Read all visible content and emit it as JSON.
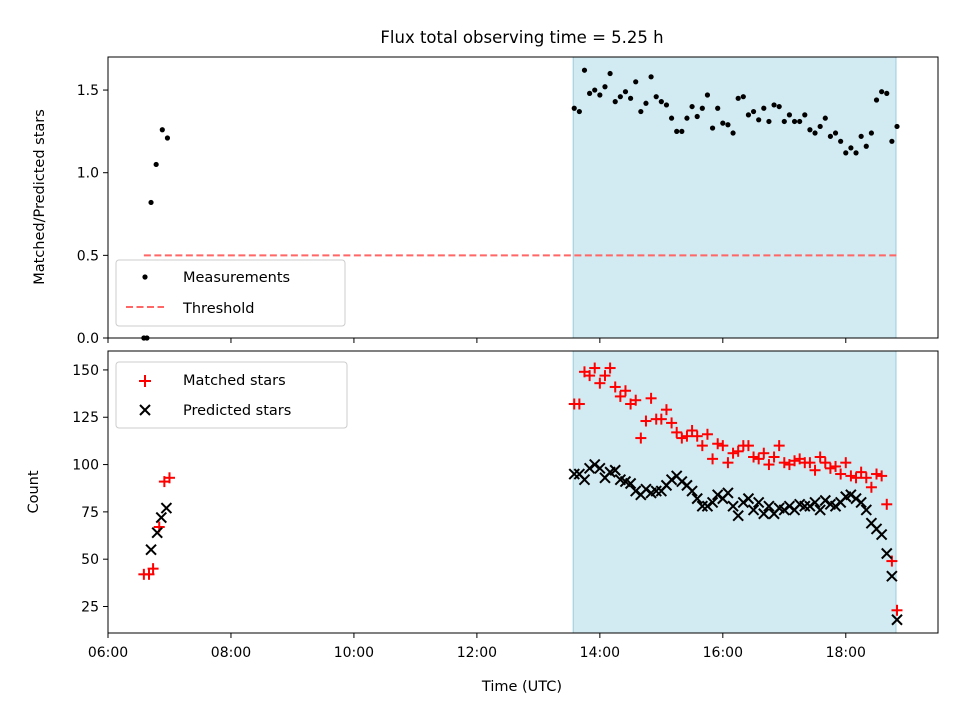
{
  "chart_data": [
    {
      "type": "scatter",
      "title": "Flux total observing time = 5.25 h",
      "xlabel": "",
      "ylabel": "Matched/Predicted stars",
      "xlim": [
        "06:00",
        "19:30"
      ],
      "ylim": [
        0,
        1.7
      ],
      "yticks": [
        "0.0",
        "0.5",
        "1.0",
        "1.5"
      ],
      "shaded_interval": [
        "13:34",
        "18:49"
      ],
      "shade_color": "#add8e6",
      "legend_position": "lower-left",
      "series": [
        {
          "name": "Measurements",
          "marker": "dot",
          "color": "#000000",
          "points": [
            [
              "06:35",
              0.0
            ],
            [
              "06:38",
              0.0
            ],
            [
              "06:42",
              0.82
            ],
            [
              "06:47",
              1.05
            ],
            [
              "06:53",
              1.26
            ],
            [
              "06:58",
              1.21
            ],
            [
              "13:35",
              1.39
            ],
            [
              "13:40",
              1.37
            ],
            [
              "13:45",
              1.62
            ],
            [
              "13:50",
              1.48
            ],
            [
              "13:55",
              1.5
            ],
            [
              "14:00",
              1.47
            ],
            [
              "14:05",
              1.52
            ],
            [
              "14:10",
              1.6
            ],
            [
              "14:15",
              1.43
            ],
            [
              "14:20",
              1.46
            ],
            [
              "14:25",
              1.49
            ],
            [
              "14:30",
              1.45
            ],
            [
              "14:35",
              1.55
            ],
            [
              "14:40",
              1.37
            ],
            [
              "14:45",
              1.42
            ],
            [
              "14:50",
              1.58
            ],
            [
              "14:55",
              1.46
            ],
            [
              "15:00",
              1.43
            ],
            [
              "15:05",
              1.41
            ],
            [
              "15:10",
              1.33
            ],
            [
              "15:15",
              1.25
            ],
            [
              "15:20",
              1.25
            ],
            [
              "15:25",
              1.33
            ],
            [
              "15:30",
              1.4
            ],
            [
              "15:35",
              1.34
            ],
            [
              "15:40",
              1.39
            ],
            [
              "15:45",
              1.47
            ],
            [
              "15:50",
              1.27
            ],
            [
              "15:55",
              1.39
            ],
            [
              "16:00",
              1.3
            ],
            [
              "16:05",
              1.29
            ],
            [
              "16:10",
              1.24
            ],
            [
              "16:15",
              1.45
            ],
            [
              "16:20",
              1.46
            ],
            [
              "16:25",
              1.35
            ],
            [
              "16:30",
              1.37
            ],
            [
              "16:35",
              1.32
            ],
            [
              "16:40",
              1.39
            ],
            [
              "16:45",
              1.31
            ],
            [
              "16:50",
              1.41
            ],
            [
              "16:55",
              1.4
            ],
            [
              "17:00",
              1.31
            ],
            [
              "17:05",
              1.35
            ],
            [
              "17:10",
              1.31
            ],
            [
              "17:15",
              1.31
            ],
            [
              "17:20",
              1.35
            ],
            [
              "17:25",
              1.26
            ],
            [
              "17:30",
              1.24
            ],
            [
              "17:35",
              1.28
            ],
            [
              "17:40",
              1.33
            ],
            [
              "17:45",
              1.22
            ],
            [
              "17:50",
              1.24
            ],
            [
              "17:55",
              1.19
            ],
            [
              "18:00",
              1.12
            ],
            [
              "18:05",
              1.15
            ],
            [
              "18:10",
              1.12
            ],
            [
              "18:15",
              1.22
            ],
            [
              "18:20",
              1.16
            ],
            [
              "18:25",
              1.24
            ],
            [
              "18:30",
              1.44
            ],
            [
              "18:35",
              1.49
            ],
            [
              "18:40",
              1.48
            ],
            [
              "18:45",
              1.19
            ],
            [
              "18:50",
              1.28
            ]
          ]
        },
        {
          "name": "Threshold",
          "line_style": "dashed",
          "color": "#ff6666",
          "points": [
            [
              "06:35",
              0.5
            ],
            [
              "18:50",
              0.5
            ]
          ]
        }
      ]
    },
    {
      "type": "scatter",
      "title": "",
      "xlabel": "Time (UTC)",
      "ylabel": "Count",
      "xlim": [
        "06:00",
        "19:30"
      ],
      "ylim": [
        11,
        160
      ],
      "xticks": [
        "06:00",
        "08:00",
        "10:00",
        "12:00",
        "14:00",
        "16:00",
        "18:00"
      ],
      "yticks": [
        "25",
        "50",
        "75",
        "100",
        "125",
        "150"
      ],
      "shaded_interval": [
        "13:34",
        "18:49"
      ],
      "shade_color": "#add8e6",
      "legend_position": "top-left",
      "series": [
        {
          "name": "Matched stars",
          "marker": "plus",
          "color": "#ff0000",
          "points": [
            [
              "06:35",
              42
            ],
            [
              "06:40",
              42
            ],
            [
              "06:44",
              45
            ],
            [
              "06:50",
              67
            ],
            [
              "06:55",
              91
            ],
            [
              "07:00",
              93
            ],
            [
              "13:35",
              132
            ],
            [
              "13:40",
              132
            ],
            [
              "13:45",
              149
            ],
            [
              "13:50",
              147
            ],
            [
              "13:55",
              151
            ],
            [
              "14:00",
              143
            ],
            [
              "14:05",
              147
            ],
            [
              "14:10",
              151
            ],
            [
              "14:15",
              141
            ],
            [
              "14:20",
              136
            ],
            [
              "14:25",
              139
            ],
            [
              "14:30",
              132
            ],
            [
              "14:35",
              134
            ],
            [
              "14:40",
              114
            ],
            [
              "14:45",
              123
            ],
            [
              "14:50",
              135
            ],
            [
              "14:55",
              124
            ],
            [
              "15:00",
              124
            ],
            [
              "15:05",
              129
            ],
            [
              "15:10",
              122
            ],
            [
              "15:15",
              117
            ],
            [
              "15:20",
              114
            ],
            [
              "15:25",
              115
            ],
            [
              "15:30",
              118
            ],
            [
              "15:35",
              115
            ],
            [
              "15:40",
              110
            ],
            [
              "15:45",
              116
            ],
            [
              "15:50",
              103
            ],
            [
              "15:55",
              111
            ],
            [
              "16:00",
              110
            ],
            [
              "16:05",
              101
            ],
            [
              "16:10",
              106
            ],
            [
              "16:15",
              107
            ],
            [
              "16:20",
              110
            ],
            [
              "16:25",
              110
            ],
            [
              "16:30",
              104
            ],
            [
              "16:35",
              103
            ],
            [
              "16:40",
              106
            ],
            [
              "16:45",
              100
            ],
            [
              "16:50",
              104
            ],
            [
              "16:55",
              110
            ],
            [
              "17:00",
              101
            ],
            [
              "17:05",
              100
            ],
            [
              "17:10",
              102
            ],
            [
              "17:15",
              103
            ],
            [
              "17:20",
              101
            ],
            [
              "17:25",
              101
            ],
            [
              "17:30",
              97
            ],
            [
              "17:35",
              104
            ],
            [
              "17:40",
              101
            ],
            [
              "17:45",
              98
            ],
            [
              "17:50",
              99
            ],
            [
              "17:55",
              95
            ],
            [
              "18:00",
              101
            ],
            [
              "18:05",
              94
            ],
            [
              "18:10",
              93
            ],
            [
              "18:15",
              96
            ],
            [
              "18:20",
              93
            ],
            [
              "18:25",
              88
            ],
            [
              "18:30",
              95
            ],
            [
              "18:35",
              94
            ],
            [
              "18:40",
              79
            ],
            [
              "18:45",
              49
            ],
            [
              "18:50",
              23
            ]
          ]
        },
        {
          "name": "Predicted stars",
          "marker": "x",
          "color": "#000000",
          "points": [
            [
              "06:42",
              55
            ],
            [
              "06:48",
              64
            ],
            [
              "06:52",
              72
            ],
            [
              "06:57",
              77
            ],
            [
              "13:35",
              95
            ],
            [
              "13:40",
              95
            ],
            [
              "13:45",
              92
            ],
            [
              "13:50",
              98
            ],
            [
              "13:55",
              100
            ],
            [
              "14:00",
              98
            ],
            [
              "14:05",
              93
            ],
            [
              "14:10",
              96
            ],
            [
              "14:15",
              97
            ],
            [
              "14:20",
              92
            ],
            [
              "14:25",
              91
            ],
            [
              "14:30",
              90
            ],
            [
              "14:35",
              86
            ],
            [
              "14:40",
              84
            ],
            [
              "14:45",
              87
            ],
            [
              "14:50",
              85
            ],
            [
              "14:55",
              86
            ],
            [
              "15:00",
              86
            ],
            [
              "15:05",
              89
            ],
            [
              "15:10",
              92
            ],
            [
              "15:15",
              94
            ],
            [
              "15:20",
              91
            ],
            [
              "15:25",
              89
            ],
            [
              "15:30",
              86
            ],
            [
              "15:35",
              82
            ],
            [
              "15:40",
              78
            ],
            [
              "15:45",
              78
            ],
            [
              "15:50",
              80
            ],
            [
              "15:55",
              84
            ],
            [
              "16:00",
              82
            ],
            [
              "16:05",
              85
            ],
            [
              "16:10",
              78
            ],
            [
              "16:15",
              73
            ],
            [
              "16:20",
              80
            ],
            [
              "16:25",
              82
            ],
            [
              "16:30",
              76
            ],
            [
              "16:35",
              80
            ],
            [
              "16:40",
              74
            ],
            [
              "16:45",
              78
            ],
            [
              "16:50",
              74
            ],
            [
              "16:55",
              77
            ],
            [
              "17:00",
              76
            ],
            [
              "17:05",
              78
            ],
            [
              "17:10",
              76
            ],
            [
              "17:15",
              79
            ],
            [
              "17:20",
              78
            ],
            [
              "17:25",
              78
            ],
            [
              "17:30",
              80
            ],
            [
              "17:35",
              76
            ],
            [
              "17:40",
              81
            ],
            [
              "17:45",
              79
            ],
            [
              "17:50",
              78
            ],
            [
              "17:55",
              80
            ],
            [
              "18:00",
              83
            ],
            [
              "18:05",
              84
            ],
            [
              "18:10",
              82
            ],
            [
              "18:15",
              80
            ],
            [
              "18:20",
              76
            ],
            [
              "18:25",
              69
            ],
            [
              "18:30",
              66
            ],
            [
              "18:35",
              63
            ],
            [
              "18:40",
              53
            ],
            [
              "18:45",
              41
            ],
            [
              "18:50",
              18
            ]
          ]
        }
      ]
    }
  ]
}
